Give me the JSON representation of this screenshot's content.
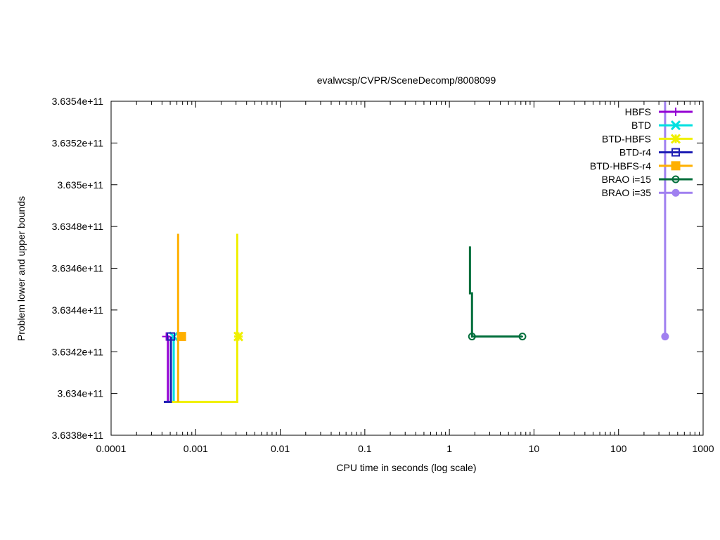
{
  "chart_data": {
    "type": "line",
    "title": "evalwcsp/CVPR/SceneDecomp/8008099",
    "xlabel": "CPU time in seconds (log scale)",
    "ylabel": "Problem lower and upper bounds",
    "xscale": "log",
    "xlim": [
      0.0001,
      1000
    ],
    "ylim": [
      363380000000,
      363540000000
    ],
    "xticks": [
      {
        "value": 0.0001,
        "label": "0.0001"
      },
      {
        "value": 0.001,
        "label": "0.001"
      },
      {
        "value": 0.01,
        "label": "0.01"
      },
      {
        "value": 0.1,
        "label": "0.1"
      },
      {
        "value": 1,
        "label": "1"
      },
      {
        "value": 10,
        "label": "10"
      },
      {
        "value": 100,
        "label": "100"
      },
      {
        "value": 1000,
        "label": "1000"
      }
    ],
    "yticks": [
      {
        "value": 363380000000,
        "label": "3.6338e+11"
      },
      {
        "value": 363400000000,
        "label": "3.634e+11"
      },
      {
        "value": 363420000000,
        "label": "3.6342e+11"
      },
      {
        "value": 363440000000,
        "label": "3.6344e+11"
      },
      {
        "value": 363460000000,
        "label": "3.6346e+11"
      },
      {
        "value": 363480000000,
        "label": "3.6348e+11"
      },
      {
        "value": 363500000000,
        "label": "3.635e+11"
      },
      {
        "value": 363520000000,
        "label": "3.6352e+11"
      },
      {
        "value": 363540000000,
        "label": "3.6354e+11"
      }
    ],
    "grid": false,
    "legend_position": "top-right",
    "series": [
      {
        "name": "HBFS",
        "color": "#9400d3",
        "marker": "plus",
        "points": [
          [
            0.00047,
            363396000000
          ],
          [
            0.00047,
            363427300000
          ],
          [
            0.00045,
            363427300000
          ]
        ],
        "marker_points": [
          [
            0.00045,
            363427300000
          ]
        ]
      },
      {
        "name": "BTD",
        "color": "#00e0e0",
        "marker": "cross",
        "points": [
          [
            0.00055,
            363396000000
          ],
          [
            0.00055,
            363427300000
          ]
        ],
        "marker_points": [
          [
            0.00055,
            363427300000
          ]
        ]
      },
      {
        "name": "BTD-HBFS",
        "color": "#f0f000",
        "marker": "star",
        "points": [
          [
            0.00052,
            363396000000
          ],
          [
            0.0031,
            363396000000
          ],
          [
            0.0031,
            363476500000
          ]
        ],
        "marker_points": [
          [
            0.0032,
            363427300000
          ]
        ]
      },
      {
        "name": "BTD-r4",
        "color": "#1f1fb4",
        "marker": "square-open",
        "points": [
          [
            0.00042,
            363396000000
          ],
          [
            0.00051,
            363396000000
          ],
          [
            0.00051,
            363427300000
          ]
        ],
        "marker_points": [
          [
            0.00051,
            363427300000
          ]
        ]
      },
      {
        "name": "BTD-HBFS-r4",
        "color": "#ffb000",
        "marker": "square-filled",
        "points": [
          [
            0.00062,
            363396000000
          ],
          [
            0.00062,
            363476500000
          ]
        ],
        "marker_points": [
          [
            0.00068,
            363427300000
          ]
        ]
      },
      {
        "name": "BRAO i=15",
        "color": "#006e3b",
        "marker": "circle-dot",
        "points": [
          [
            1.75,
            363470500000
          ],
          [
            1.75,
            363448000000
          ],
          [
            1.85,
            363448000000
          ],
          [
            1.85,
            363427300000
          ],
          [
            7.3,
            363427300000
          ]
        ],
        "marker_points": [
          [
            1.85,
            363427300000
          ],
          [
            7.3,
            363427300000
          ]
        ]
      },
      {
        "name": "BRAO i=35",
        "color": "#a080f0",
        "marker": "circle-filled",
        "points": [
          [
            355,
            363540000000
          ],
          [
            355,
            363427300000
          ]
        ],
        "marker_points": [
          [
            355,
            363427300000
          ]
        ]
      }
    ]
  }
}
